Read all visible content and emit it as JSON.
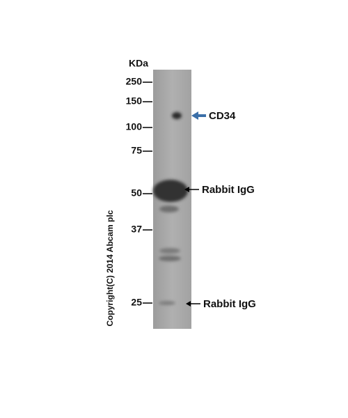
{
  "unit_label": "KDa",
  "markers": [
    "250",
    "150",
    "100",
    "75",
    "50",
    "37",
    "25"
  ],
  "annotations": [
    "CD34",
    "Rabbit IgG",
    "Rabbit IgG"
  ],
  "copyright": "Copyright(C) 2014 Abcam plc"
}
